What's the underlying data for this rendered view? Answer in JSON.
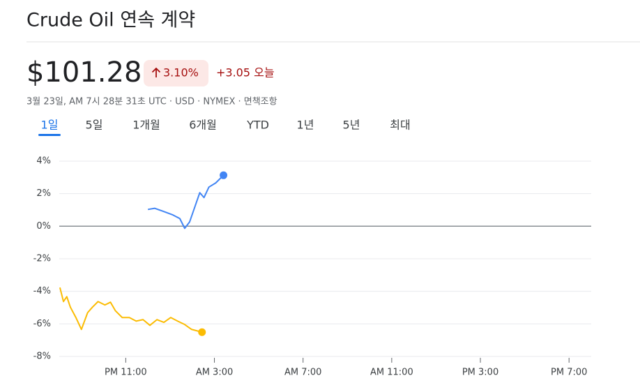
{
  "header": {
    "title": "Crude Oil 연속 계약",
    "price": "$101.28",
    "change_percent": "3.10%",
    "change_today": "+3.05 오늘",
    "subtitle": "3월 23일, AM 7시 28분 31초 UTC · USD · NYMEX · 면책조항"
  },
  "tabs": [
    "1일",
    "5일",
    "1개월",
    "6개월",
    "YTD",
    "1년",
    "5년",
    "최대"
  ],
  "selected_tab": 0,
  "chart_data": {
    "type": "line",
    "xlim": [
      20,
      44
    ],
    "xticks": [
      {
        "value": 23,
        "label": "PM 11:00"
      },
      {
        "value": 27,
        "label": "AM 3:00"
      },
      {
        "value": 31,
        "label": "AM 7:00"
      },
      {
        "value": 35,
        "label": "AM 11:00"
      },
      {
        "value": 39,
        "label": "PM 3:00"
      },
      {
        "value": 43,
        "label": "PM 7:00"
      }
    ],
    "ylim": [
      -8,
      4
    ],
    "yticks": [
      {
        "value": -8,
        "label": "-8%"
      },
      {
        "value": -6,
        "label": "-6%"
      },
      {
        "value": -4,
        "label": "-4%"
      },
      {
        "value": -2,
        "label": "-2%"
      },
      {
        "value": 0,
        "label": "0%"
      },
      {
        "value": 2,
        "label": "2%"
      },
      {
        "value": 4,
        "label": "4%"
      }
    ],
    "grid": true,
    "series": [
      {
        "color": "#4285f4",
        "x": [
          24.0,
          24.31,
          24.72,
          25.13,
          25.44,
          25.66,
          25.88,
          26.13,
          26.34,
          26.53,
          26.75,
          27.06,
          27.41
        ],
        "values": [
          1.03,
          1.1,
          0.9,
          0.69,
          0.47,
          -0.13,
          0.26,
          1.24,
          2.06,
          1.76,
          2.4,
          2.66,
          3.13
        ]
      },
      {
        "color": "#fbbc04",
        "x": [
          20.03,
          20.19,
          20.34,
          20.5,
          20.75,
          21.0,
          21.28,
          21.5,
          21.75,
          22.06,
          22.31,
          22.53,
          22.84,
          23.16,
          23.47,
          23.78,
          24.09,
          24.41,
          24.72,
          25.03,
          25.34,
          25.66,
          25.97,
          26.44
        ],
        "values": [
          -3.77,
          -4.63,
          -4.33,
          -4.97,
          -5.61,
          -6.34,
          -5.31,
          -4.97,
          -4.63,
          -4.84,
          -4.67,
          -5.19,
          -5.61,
          -5.61,
          -5.83,
          -5.74,
          -6.09,
          -5.74,
          -5.91,
          -5.61,
          -5.83,
          -6.04,
          -6.34,
          -6.51
        ]
      }
    ]
  }
}
